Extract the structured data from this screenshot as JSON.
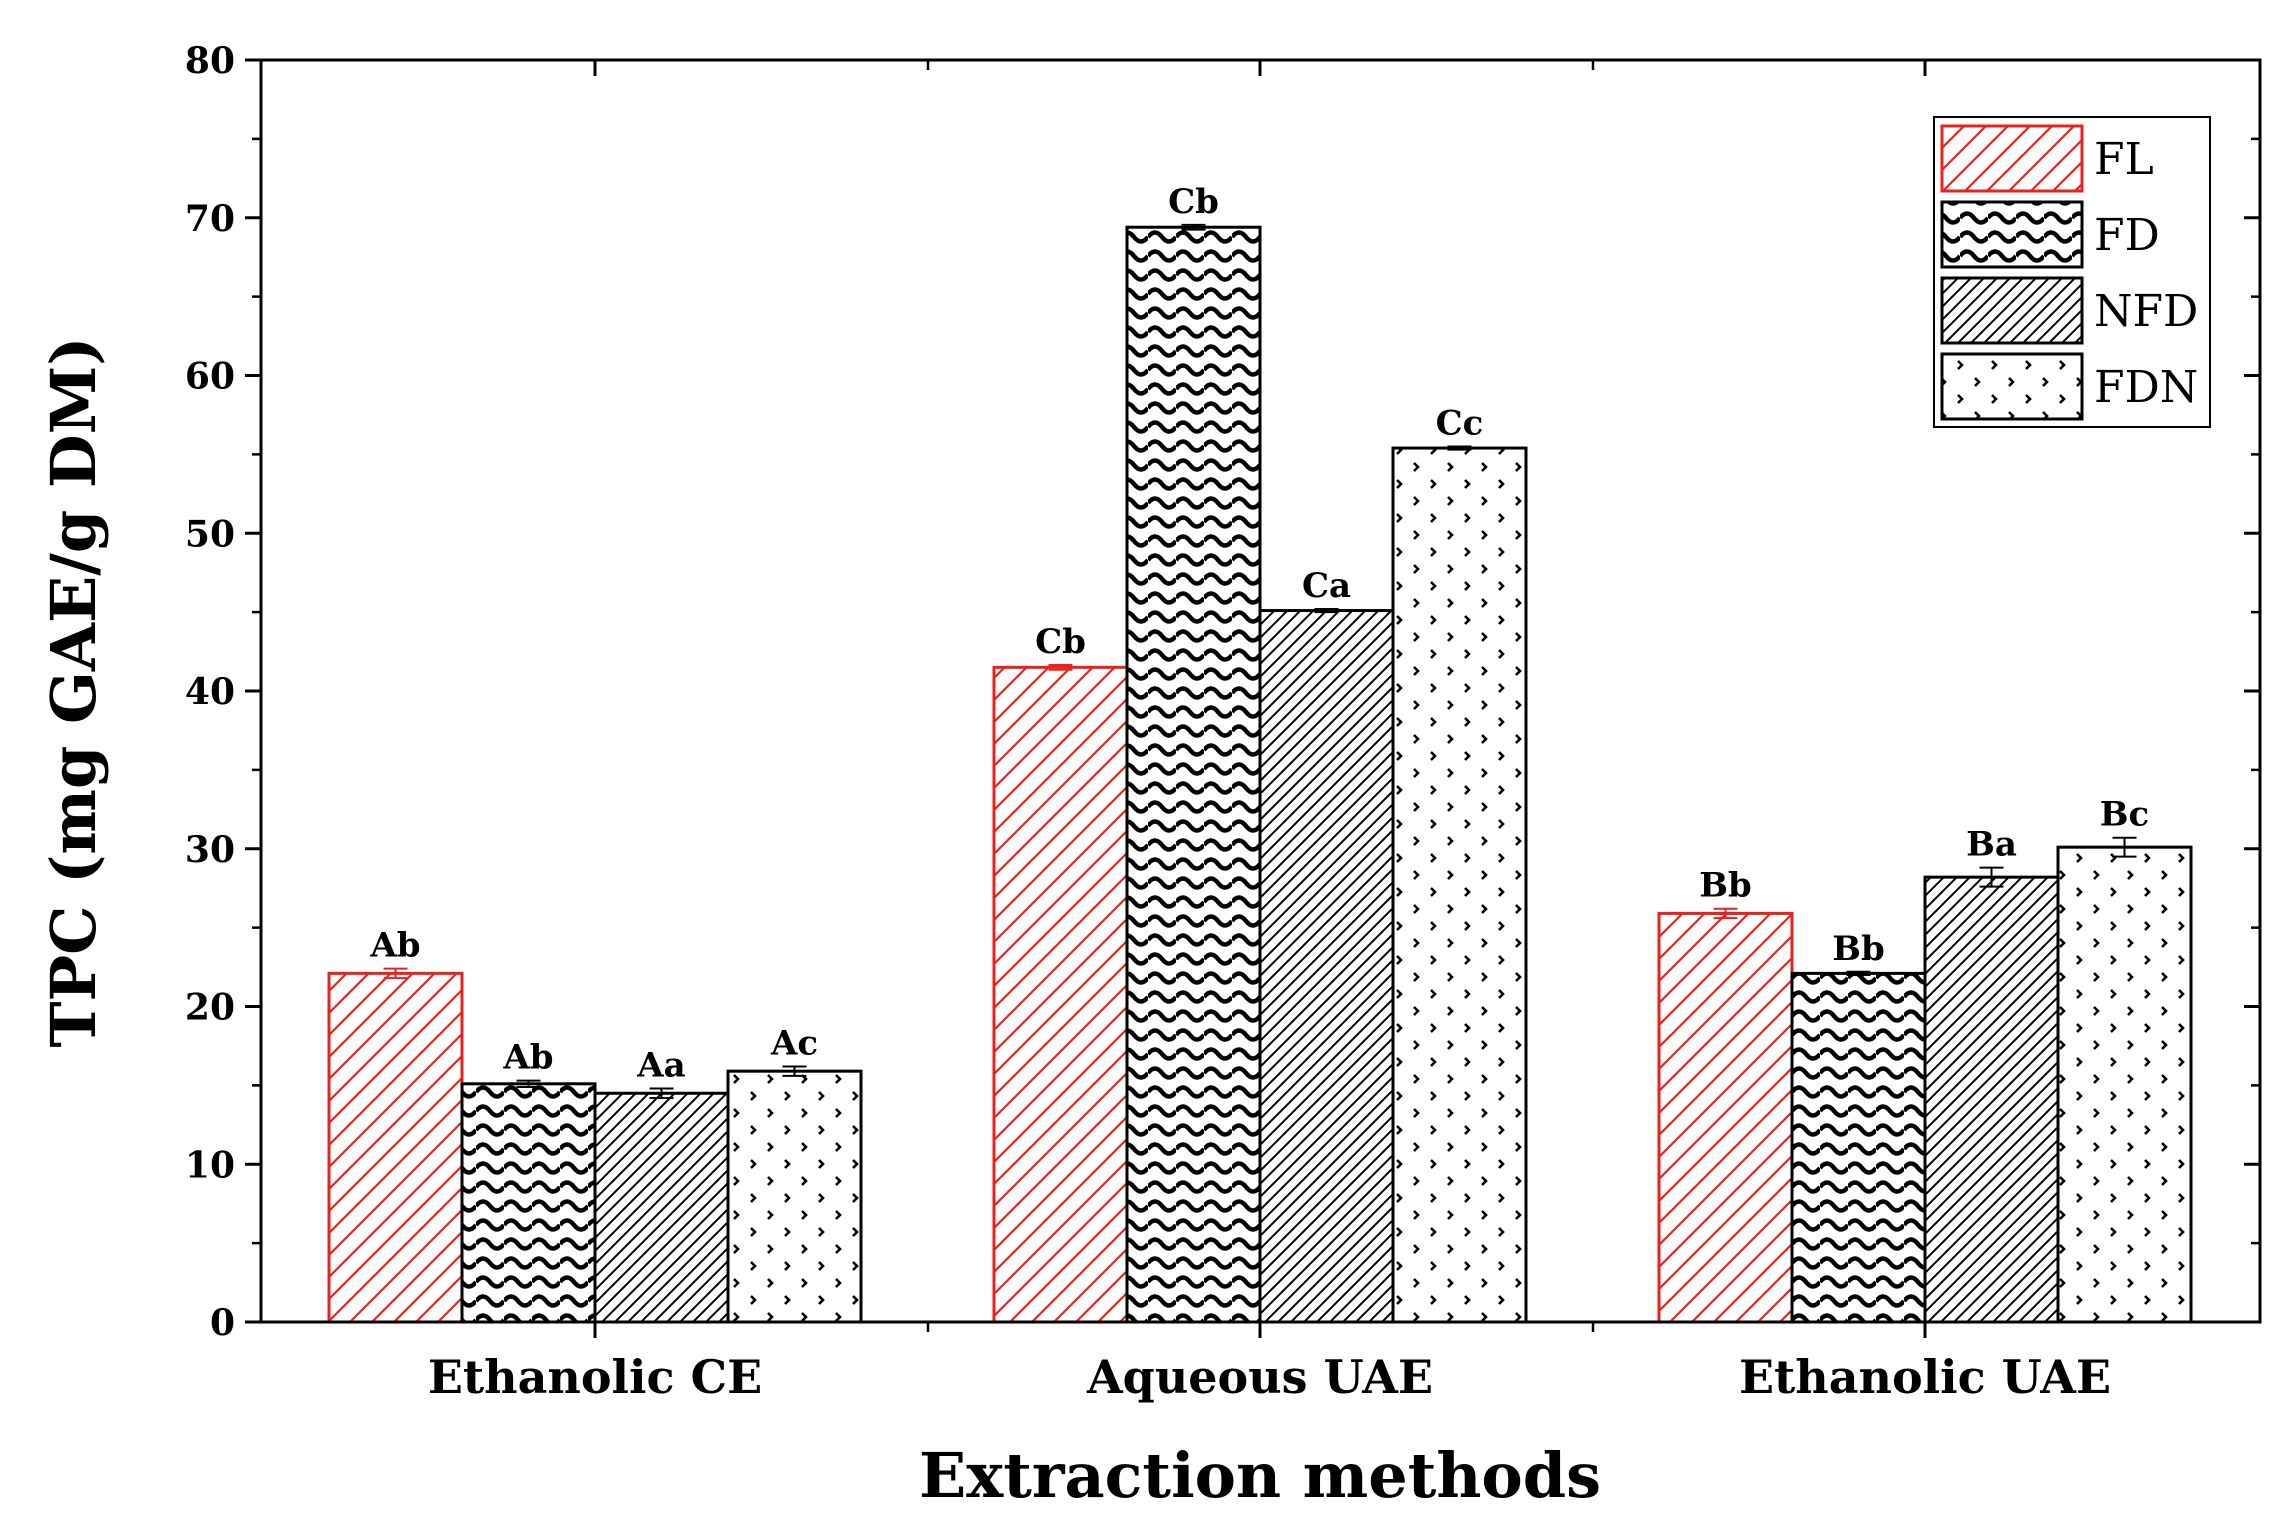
{
  "chart_data": {
    "type": "bar",
    "title": "",
    "xlabel": "Extraction methods",
    "ylabel": "TPC (mg GAE/g DM)",
    "ylim": [
      0,
      80
    ],
    "yticks": [
      "0",
      "10",
      "20",
      "30",
      "40",
      "50",
      "60",
      "70",
      "80"
    ],
    "categories": [
      "Ethanolic CE",
      "Aqueous UAE",
      "Ethanolic UAE"
    ],
    "legend_position": "top-right",
    "series": [
      {
        "name": "FL",
        "pattern": "diagonal-hatch",
        "color": "#e8231f",
        "values": [
          22.1,
          41.5,
          25.9
        ],
        "errors": [
          0.3,
          0.15,
          0.3
        ],
        "labels": [
          "Ab",
          "Cb",
          "Bb"
        ]
      },
      {
        "name": "FD",
        "pattern": "wave",
        "color": "#000000",
        "values": [
          15.1,
          69.4,
          22.1
        ],
        "errors": [
          0.2,
          0.15,
          0.1
        ],
        "labels": [
          "Ab",
          "Cb",
          "Bb"
        ]
      },
      {
        "name": "NFD",
        "pattern": "dense-diagonal",
        "color": "#000000",
        "values": [
          14.5,
          45.1,
          28.2
        ],
        "errors": [
          0.3,
          0.1,
          0.6
        ],
        "labels": [
          "Aa",
          "Ca",
          "Ba"
        ]
      },
      {
        "name": "FDN",
        "pattern": "dots",
        "color": "#000000",
        "values": [
          15.9,
          55.4,
          30.1
        ],
        "errors": [
          0.3,
          0.1,
          0.6
        ],
        "labels": [
          "Ac",
          "Cc",
          "Bc"
        ]
      }
    ]
  }
}
